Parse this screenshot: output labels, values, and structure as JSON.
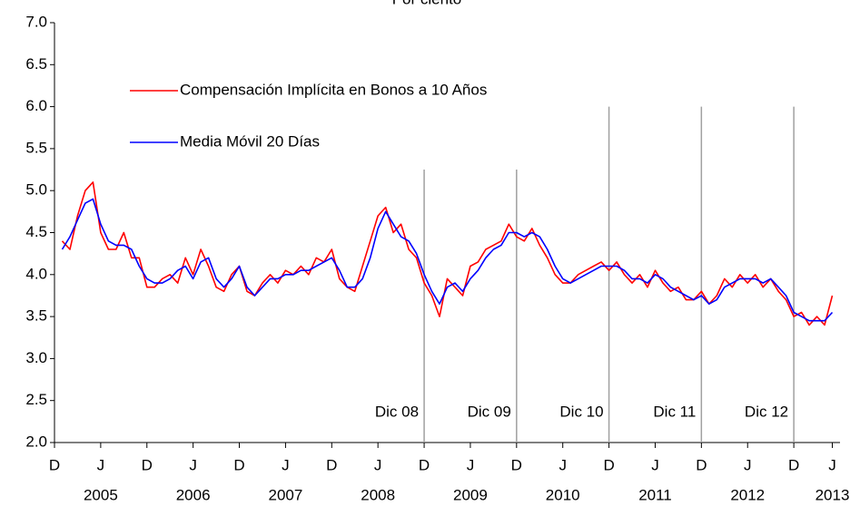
{
  "chart_data": {
    "type": "line",
    "title": "Por ciento",
    "x": [
      1,
      2,
      3,
      4,
      5,
      6,
      7,
      8,
      9,
      10,
      11,
      12,
      13,
      14,
      15,
      16,
      17,
      18,
      19,
      20,
      21,
      22,
      23,
      24,
      25,
      26,
      27,
      28,
      29,
      30,
      31,
      32,
      33,
      34,
      35,
      36,
      37,
      38,
      39,
      40,
      41,
      42,
      43,
      44,
      45,
      46,
      47,
      48,
      49,
      50,
      51,
      52,
      53,
      54,
      55,
      56,
      57,
      58,
      59,
      60,
      61,
      62,
      63,
      64,
      65,
      66,
      67,
      68,
      69,
      70,
      71,
      72,
      73,
      74,
      75,
      76,
      77,
      78,
      79,
      80,
      81,
      82,
      83,
      84,
      85,
      86,
      87,
      88,
      89,
      90,
      91,
      92,
      93,
      94,
      95,
      96,
      97,
      98,
      99,
      100,
      101
    ],
    "series": [
      {
        "name": "Compensación Implícita en Bonos a 10 Años",
        "color": "#ff0000",
        "values": [
          4.4,
          4.3,
          4.7,
          5.0,
          5.1,
          4.5,
          4.3,
          4.3,
          4.5,
          4.2,
          4.2,
          3.85,
          3.85,
          3.95,
          4.0,
          3.9,
          4.2,
          4.0,
          4.3,
          4.1,
          3.85,
          3.8,
          4.0,
          4.1,
          3.8,
          3.75,
          3.9,
          4.0,
          3.9,
          4.05,
          4.0,
          4.1,
          4.0,
          4.2,
          4.15,
          4.3,
          3.95,
          3.85,
          3.8,
          4.1,
          4.4,
          4.7,
          4.8,
          4.5,
          4.6,
          4.3,
          4.2,
          3.9,
          3.75,
          3.5,
          3.95,
          3.85,
          3.75,
          4.1,
          4.15,
          4.3,
          4.35,
          4.4,
          4.6,
          4.45,
          4.4,
          4.55,
          4.35,
          4.2,
          4.0,
          3.9,
          3.9,
          4.0,
          4.05,
          4.1,
          4.15,
          4.05,
          4.15,
          4.0,
          3.9,
          4.0,
          3.85,
          4.05,
          3.9,
          3.8,
          3.85,
          3.7,
          3.7,
          3.8,
          3.65,
          3.75,
          3.95,
          3.85,
          4.0,
          3.9,
          4.0,
          3.85,
          3.95,
          3.8,
          3.7,
          3.5,
          3.55,
          3.4,
          3.5,
          3.4,
          3.75
        ]
      },
      {
        "name": "Media Móvil 20 Días",
        "color": "#0000ff",
        "values": [
          4.3,
          4.45,
          4.65,
          4.85,
          4.9,
          4.6,
          4.4,
          4.35,
          4.35,
          4.3,
          4.1,
          3.95,
          3.9,
          3.9,
          3.95,
          4.05,
          4.1,
          3.95,
          4.15,
          4.2,
          3.95,
          3.85,
          3.95,
          4.1,
          3.85,
          3.75,
          3.85,
          3.95,
          3.95,
          4.0,
          4.0,
          4.05,
          4.05,
          4.1,
          4.15,
          4.2,
          4.05,
          3.85,
          3.85,
          3.95,
          4.2,
          4.55,
          4.75,
          4.6,
          4.45,
          4.4,
          4.25,
          4.0,
          3.8,
          3.65,
          3.85,
          3.9,
          3.8,
          3.95,
          4.05,
          4.2,
          4.3,
          4.35,
          4.5,
          4.5,
          4.45,
          4.5,
          4.45,
          4.3,
          4.1,
          3.95,
          3.9,
          3.95,
          4.0,
          4.05,
          4.1,
          4.1,
          4.1,
          4.05,
          3.95,
          3.95,
          3.9,
          4.0,
          3.95,
          3.85,
          3.8,
          3.75,
          3.7,
          3.75,
          3.65,
          3.7,
          3.85,
          3.9,
          3.95,
          3.95,
          3.95,
          3.9,
          3.95,
          3.85,
          3.75,
          3.55,
          3.5,
          3.45,
          3.45,
          3.45,
          3.55
        ]
      }
    ],
    "xlim": [
      0,
      102
    ],
    "xticks": [
      {
        "value": 0,
        "label": "D"
      },
      {
        "value": 6,
        "label": "J"
      },
      {
        "value": 12,
        "label": "D"
      },
      {
        "value": 18,
        "label": "J"
      },
      {
        "value": 24,
        "label": "D"
      },
      {
        "value": 30,
        "label": "J"
      },
      {
        "value": 36,
        "label": "D"
      },
      {
        "value": 42,
        "label": "J"
      },
      {
        "value": 48,
        "label": "D"
      },
      {
        "value": 54,
        "label": "J"
      },
      {
        "value": 60,
        "label": "D"
      },
      {
        "value": 66,
        "label": "J"
      },
      {
        "value": 72,
        "label": "D"
      },
      {
        "value": 78,
        "label": "J"
      },
      {
        "value": 84,
        "label": "D"
      },
      {
        "value": 90,
        "label": "J"
      },
      {
        "value": 96,
        "label": "D"
      },
      {
        "value": 101,
        "label": "J"
      }
    ],
    "x_year_labels": [
      {
        "value": 6,
        "label": "2005"
      },
      {
        "value": 18,
        "label": "2006"
      },
      {
        "value": 30,
        "label": "2007"
      },
      {
        "value": 42,
        "label": "2008"
      },
      {
        "value": 54,
        "label": "2009"
      },
      {
        "value": 66,
        "label": "2010"
      },
      {
        "value": 78,
        "label": "2011"
      },
      {
        "value": 90,
        "label": "2012"
      },
      {
        "value": 101,
        "label": "2013"
      }
    ],
    "ylim": [
      2,
      7
    ],
    "yticks": [
      {
        "value": 2,
        "label": "2.0"
      },
      2.5,
      {
        "value": 3,
        "label": "3.0"
      },
      3.5,
      {
        "value": 4,
        "label": "4.0"
      },
      4.5,
      {
        "value": 5,
        "label": "5.0"
      },
      5.5,
      {
        "value": 6,
        "label": "6.0"
      },
      6.5,
      {
        "value": 7,
        "label": "7.0"
      }
    ],
    "vlines": [
      {
        "value": 48,
        "label": "Dic 08",
        "ymax": 5.25
      },
      {
        "value": 60,
        "label": "Dic 09",
        "ymax": 5.25
      },
      {
        "value": 72,
        "label": "Dic 10",
        "ymax": 6
      },
      {
        "value": 84,
        "label": "Dic 11",
        "ymax": 6
      },
      {
        "value": 96,
        "label": "Dic 12",
        "ymax": 6
      }
    ],
    "vline_color": "#a0a0a0"
  }
}
